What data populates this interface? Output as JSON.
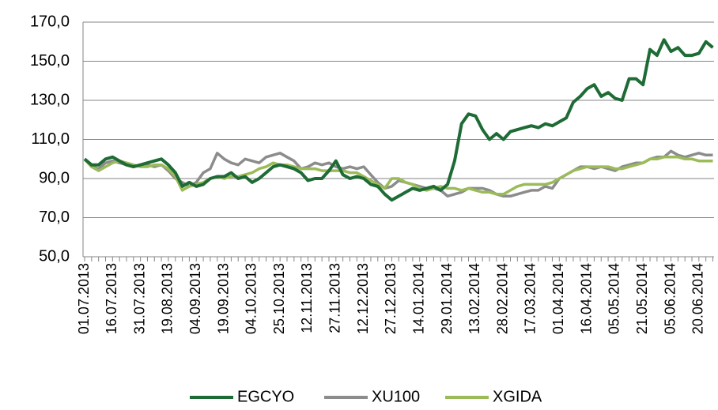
{
  "chart_data": {
    "type": "line",
    "categories": [
      "01.07.2013",
      null,
      null,
      null,
      "16.07.2013",
      null,
      null,
      null,
      "31.07.2013",
      null,
      null,
      null,
      "19.08.2013",
      null,
      null,
      null,
      "04.09.2013",
      null,
      null,
      null,
      "19.09.2013",
      null,
      null,
      null,
      "04.10.2013",
      null,
      null,
      null,
      "25.10.2013",
      null,
      null,
      null,
      "12.11.2013",
      null,
      null,
      null,
      "27.11.2013",
      null,
      null,
      null,
      "12.12.2013",
      null,
      null,
      null,
      "27.12.2013",
      null,
      null,
      null,
      "14.01.2014",
      null,
      null,
      null,
      "29.01.2014",
      null,
      null,
      null,
      "13.02.2014",
      null,
      null,
      null,
      "28.02.2014",
      null,
      null,
      null,
      "17.03.2014",
      null,
      null,
      null,
      "01.04.2014",
      null,
      null,
      null,
      "16.04.2014",
      null,
      null,
      null,
      "05.05.2014",
      null,
      null,
      null,
      "21.05.2014",
      null,
      null,
      null,
      "05.06.2014",
      null,
      null,
      null,
      "20.06.2014",
      null,
      null
    ],
    "series": [
      {
        "name": "EGCYO",
        "color": "#1e6b35",
        "values": [
          100,
          97,
          97,
          100,
          101,
          99,
          97,
          96,
          97,
          98,
          99,
          100,
          97,
          93,
          86,
          88,
          86,
          87,
          90,
          91,
          91,
          93,
          90,
          91,
          88,
          90,
          93,
          96,
          97,
          96,
          95,
          93,
          89,
          90,
          90,
          94,
          99,
          92,
          90,
          91,
          90,
          87,
          86,
          82,
          79,
          81,
          83,
          85,
          84,
          85,
          86,
          84,
          87,
          99,
          118,
          123,
          122,
          115,
          110,
          113,
          110,
          114,
          115,
          116,
          117,
          116,
          118,
          117,
          119,
          121,
          129,
          132,
          136,
          138,
          132,
          134,
          131,
          130,
          141,
          141,
          138,
          156,
          153,
          161,
          155,
          157,
          153,
          153,
          154,
          160,
          157
        ]
      },
      {
        "name": "XU100",
        "color": "#8c8c8c",
        "values": [
          100,
          96,
          95,
          98,
          99,
          98,
          97,
          96,
          97,
          97,
          96,
          97,
          94,
          90,
          88,
          86,
          88,
          93,
          95,
          103,
          100,
          98,
          97,
          100,
          99,
          98,
          101,
          102,
          103,
          101,
          99,
          95,
          96,
          98,
          97,
          98,
          96,
          95,
          96,
          95,
          96,
          92,
          88,
          85,
          86,
          89,
          88,
          87,
          86,
          85,
          85,
          84,
          81,
          82,
          83,
          85,
          85,
          85,
          84,
          82,
          81,
          81,
          82,
          83,
          84,
          84,
          86,
          85,
          90,
          92,
          94,
          96,
          96,
          95,
          96,
          95,
          94,
          96,
          97,
          98,
          98,
          100,
          101,
          101,
          104,
          102,
          101,
          102,
          103,
          102,
          102
        ]
      },
      {
        "name": "XGIDA",
        "color": "#9bbb59",
        "values": [
          100,
          96,
          94,
          96,
          98,
          99,
          98,
          97,
          96,
          96,
          97,
          97,
          95,
          91,
          84,
          86,
          87,
          88,
          90,
          91,
          90,
          91,
          91,
          92,
          93,
          95,
          96,
          98,
          97,
          97,
          96,
          95,
          95,
          95,
          94,
          94,
          94,
          94,
          93,
          93,
          91,
          89,
          87,
          85,
          90,
          90,
          88,
          87,
          85,
          84,
          85,
          86,
          85,
          85,
          84,
          85,
          84,
          83,
          83,
          82,
          82,
          84,
          86,
          87,
          87,
          87,
          87,
          88,
          90,
          92,
          94,
          95,
          96,
          96,
          96,
          96,
          95,
          95,
          96,
          97,
          98,
          100,
          100,
          101,
          101,
          101,
          100,
          100,
          99,
          99,
          99
        ]
      }
    ],
    "ylim": [
      50,
      170
    ],
    "yticks": [
      {
        "value": 50,
        "label": "50,0"
      },
      {
        "value": 70,
        "label": "70,0"
      },
      {
        "value": 90,
        "label": "90,0"
      },
      {
        "value": 110,
        "label": "110,0"
      },
      {
        "value": 130,
        "label": "130,0"
      },
      {
        "value": 150,
        "label": "150,0"
      },
      {
        "value": 170,
        "label": "170,0"
      }
    ],
    "grid": true,
    "legend": "bottom"
  }
}
